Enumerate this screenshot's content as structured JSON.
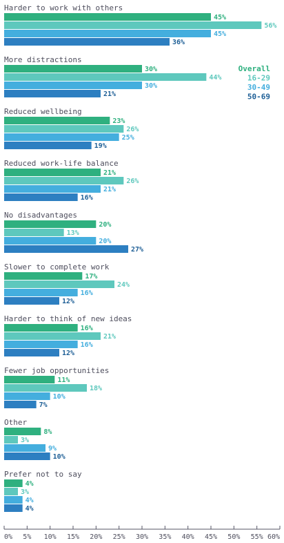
{
  "chart_data": {
    "type": "bar",
    "orientation": "horizontal",
    "categories": [
      "Harder to work with others",
      "More distractions",
      "Reduced wellbeing",
      "Reduced work-life balance",
      "No disadvantages",
      "Slower to complete work",
      "Harder to think of new ideas",
      "Fewer job opportunities",
      "Other",
      "Prefer not to say"
    ],
    "series": [
      {
        "name": "Overall",
        "color": "#2fb07f",
        "values": [
          45,
          30,
          23,
          21,
          20,
          17,
          16,
          11,
          8,
          4
        ]
      },
      {
        "name": "16-29",
        "color": "#5ec8bd",
        "values": [
          56,
          44,
          26,
          26,
          13,
          24,
          21,
          18,
          3,
          3
        ]
      },
      {
        "name": "30-49",
        "color": "#44aede",
        "values": [
          45,
          30,
          25,
          21,
          20,
          16,
          16,
          10,
          9,
          4
        ]
      },
      {
        "name": "50-69",
        "color": "#2d7fc1",
        "values": [
          36,
          21,
          19,
          16,
          27,
          12,
          12,
          7,
          10,
          4
        ]
      }
    ],
    "value_suffix": "%",
    "xlim": [
      0,
      60
    ],
    "xticks": [
      "0%",
      "5%",
      "10%",
      "15%",
      "20%",
      "25%",
      "30%",
      "35%",
      "40%",
      "45%",
      "50%",
      "55%",
      "60%"
    ],
    "title": "",
    "xlabel": "",
    "ylabel": "",
    "grid": false,
    "legend_position": "right, beside second category"
  }
}
